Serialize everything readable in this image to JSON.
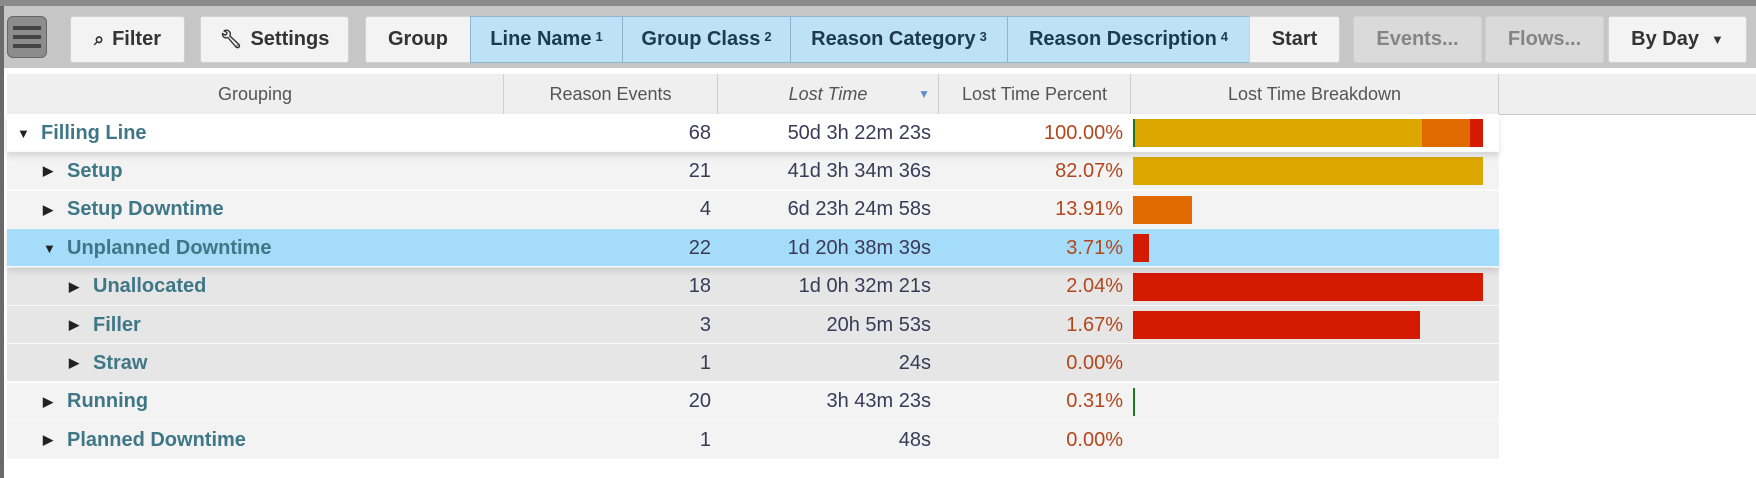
{
  "toolbar": {
    "menu_icon": "hamburger-icon",
    "filter": {
      "label": "Filter",
      "icon": "search-icon"
    },
    "settings": {
      "label": "Settings",
      "icon": "wrench-icon"
    },
    "group": "Group",
    "group_chips": [
      {
        "label": "Line Name",
        "order": "1"
      },
      {
        "label": "Group Class",
        "order": "2"
      },
      {
        "label": "Reason Category",
        "order": "3"
      },
      {
        "label": "Reason Description",
        "order": "4"
      }
    ],
    "start": "Start",
    "events": "Events...",
    "flows": "Flows...",
    "period": {
      "label": "By Day",
      "icon": "caret-down-icon"
    }
  },
  "columns": {
    "grouping": "Grouping",
    "events": "Reason Events",
    "lost_time": "Lost Time",
    "lost_time_sort": "descending",
    "percent": "Lost Time Percent",
    "breakdown": "Lost Time Breakdown"
  },
  "colors": {
    "setup": "#dca800",
    "setup_downtime": "#e06a00",
    "unplanned_downtime": "#d41a00",
    "running": "#1a7a1a",
    "selected_row": "#a5dcfa"
  },
  "rows": [
    {
      "name": "Filling Line",
      "level": 0,
      "expanded": true,
      "events": "68",
      "lost_time": "50d 3h 22m 23s",
      "percent": "100.00%",
      "bar_fraction": 1.0,
      "segments": [
        {
          "share": 0.0031,
          "color": "#1a7a1a"
        },
        {
          "share": 0.8207,
          "color": "#dca800"
        },
        {
          "share": 0.1391,
          "color": "#e06a00"
        },
        {
          "share": 0.0371,
          "color": "#d41a00"
        }
      ]
    },
    {
      "name": "Setup",
      "level": 1,
      "expanded": false,
      "events": "21",
      "lost_time": "41d 3h 34m 36s",
      "percent": "82.07%",
      "bar_fraction": 1.0,
      "segments": [
        {
          "share": 1,
          "color": "#dca800"
        }
      ]
    },
    {
      "name": "Setup Downtime",
      "level": 1,
      "expanded": false,
      "events": "4",
      "lost_time": "6d 23h 24m 58s",
      "percent": "13.91%",
      "bar_fraction": 0.1695,
      "segments": [
        {
          "share": 1,
          "color": "#e06a00"
        }
      ]
    },
    {
      "name": "Unplanned Downtime",
      "level": 1,
      "expanded": true,
      "selected": true,
      "events": "22",
      "lost_time": "1d 20h 38m 39s",
      "percent": "3.71%",
      "bar_fraction": 0.0452,
      "segments": [
        {
          "share": 1,
          "color": "#d41a00"
        }
      ]
    },
    {
      "name": "Unallocated",
      "level": 2,
      "expanded": false,
      "events": "18",
      "lost_time": "1d 0h 32m 21s",
      "percent": "2.04%",
      "bar_fraction": 1.0,
      "segments": [
        {
          "share": 1,
          "color": "#d41a00"
        }
      ]
    },
    {
      "name": "Filler",
      "level": 2,
      "expanded": false,
      "events": "3",
      "lost_time": "20h 5m 53s",
      "percent": "1.67%",
      "bar_fraction": 0.8186,
      "segments": [
        {
          "share": 1,
          "color": "#d41a00"
        }
      ]
    },
    {
      "name": "Straw",
      "level": 2,
      "expanded": false,
      "events": "1",
      "lost_time": "24s",
      "percent": "0.00%",
      "bar_fraction": 0,
      "segments": []
    },
    {
      "name": "Running",
      "level": 1,
      "expanded": false,
      "events": "20",
      "lost_time": "3h 43m 23s",
      "percent": "0.31%",
      "bar_fraction": 0.0038,
      "segments": [
        {
          "share": 1,
          "color": "#1a7a1a"
        }
      ]
    },
    {
      "name": "Planned Downtime",
      "level": 1,
      "expanded": false,
      "events": "1",
      "lost_time": "48s",
      "percent": "0.00%",
      "bar_fraction": 0,
      "segments": []
    }
  ]
}
